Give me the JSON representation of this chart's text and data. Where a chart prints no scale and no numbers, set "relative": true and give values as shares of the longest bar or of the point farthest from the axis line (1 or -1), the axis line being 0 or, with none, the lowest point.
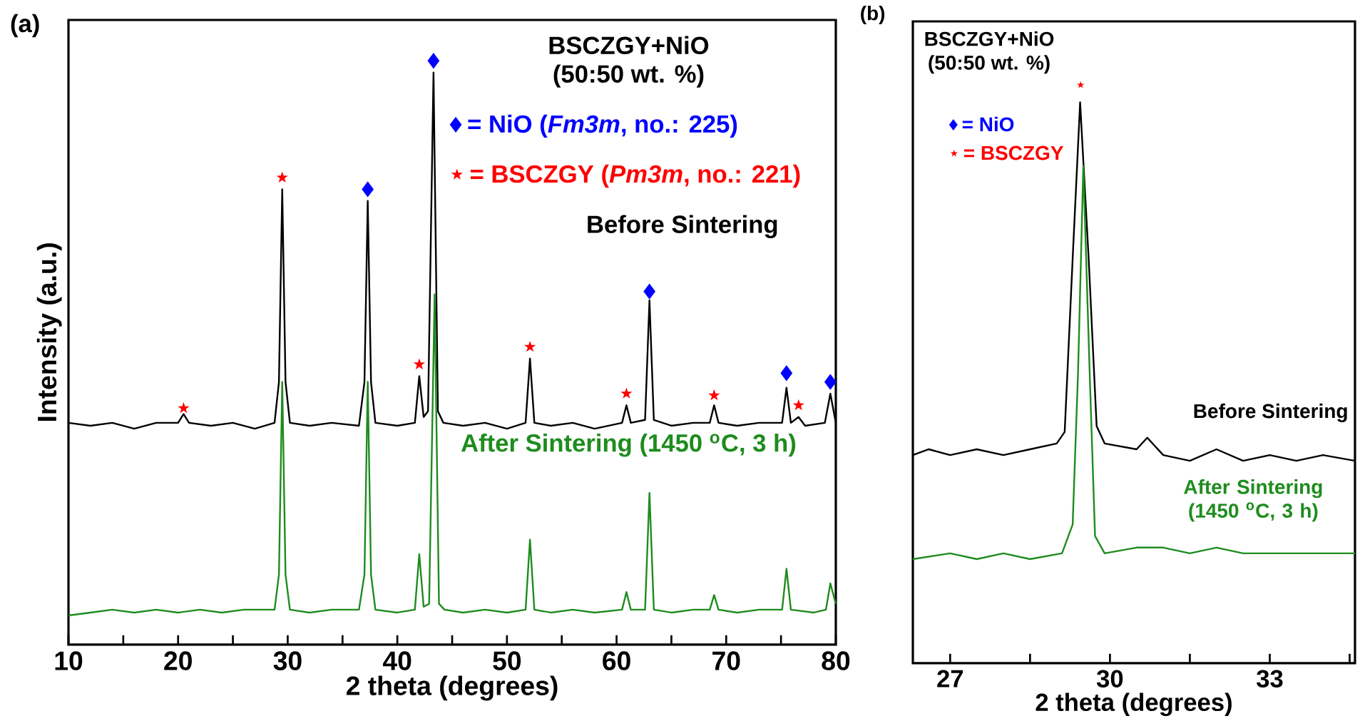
{
  "chart_data": [
    {
      "type": "line",
      "relative": true,
      "title": "BSCZGY+NiO",
      "subtitle": "(50:50 wt. %)",
      "xlabel": "2 theta (degrees)",
      "ylabel": "Intensity (a.u.)",
      "xlim": [
        10,
        80
      ],
      "xticks": [
        10,
        {
          "value": 15,
          "label": null
        },
        20,
        {
          "value": 25,
          "label": null
        },
        30,
        {
          "value": 35,
          "label": null
        },
        40,
        {
          "value": 45,
          "label": null
        },
        50,
        {
          "value": 55,
          "label": null
        },
        60,
        {
          "value": 65,
          "label": null
        },
        70,
        {
          "value": 75,
          "label": null
        },
        80
      ],
      "legend": "top right",
      "annotations": [
        "(a)"
      ],
      "series": [
        {
          "name": "Before Sintering",
          "color": "#000000",
          "x": [
            10,
            12,
            14,
            16,
            18,
            20,
            20.5,
            21,
            23,
            25,
            27,
            28.8,
            29.2,
            29.5,
            29.8,
            30.2,
            32,
            34,
            36.5,
            37.0,
            37.3,
            37.6,
            38,
            40,
            41.6,
            42.0,
            42.4,
            42.8,
            43.3,
            43.7,
            44.2,
            46,
            48,
            50,
            51.7,
            52.1,
            52.5,
            54,
            56,
            58,
            60.5,
            60.9,
            61.3,
            62.6,
            63.0,
            63.4,
            65,
            67,
            68.5,
            68.9,
            69.3,
            71,
            73,
            75.1,
            75.5,
            75.9,
            76.6,
            77.2,
            79,
            79.5,
            80
          ],
          "values": [
            0.38,
            0.375,
            0.38,
            0.37,
            0.38,
            0.38,
            0.395,
            0.38,
            0.375,
            0.38,
            0.37,
            0.38,
            0.45,
            0.78,
            0.45,
            0.38,
            0.375,
            0.38,
            0.375,
            0.45,
            0.76,
            0.45,
            0.38,
            0.375,
            0.38,
            0.46,
            0.39,
            0.4,
            0.98,
            0.4,
            0.38,
            0.375,
            0.38,
            0.37,
            0.38,
            0.49,
            0.38,
            0.375,
            0.38,
            0.37,
            0.38,
            0.41,
            0.38,
            0.385,
            0.59,
            0.385,
            0.375,
            0.38,
            0.38,
            0.41,
            0.38,
            0.375,
            0.38,
            0.38,
            0.44,
            0.38,
            0.39,
            0.375,
            0.38,
            0.43,
            0.38
          ]
        },
        {
          "name": "After Sintering (1450 $^{o}$C, 3 h)",
          "color": "#1e8c1e",
          "x": [
            10,
            12,
            14,
            16,
            18,
            20,
            22,
            24,
            26,
            28.8,
            29.2,
            29.5,
            29.8,
            30.2,
            32,
            34,
            36.5,
            37.0,
            37.3,
            37.6,
            38,
            40,
            41.6,
            42.0,
            42.4,
            42.9,
            43.4,
            43.8,
            44.3,
            46,
            48,
            50,
            51.7,
            52.1,
            52.5,
            54,
            56,
            58,
            60.5,
            60.9,
            61.3,
            62.6,
            63.0,
            63.4,
            65,
            67,
            68.5,
            68.9,
            69.3,
            71,
            73,
            75.1,
            75.5,
            75.9,
            78,
            79.1,
            79.5,
            80
          ],
          "values": [
            0.05,
            0.055,
            0.06,
            0.055,
            0.06,
            0.055,
            0.06,
            0.055,
            0.06,
            0.06,
            0.12,
            0.45,
            0.12,
            0.06,
            0.055,
            0.06,
            0.06,
            0.12,
            0.45,
            0.12,
            0.06,
            0.055,
            0.06,
            0.155,
            0.065,
            0.07,
            0.6,
            0.07,
            0.06,
            0.055,
            0.06,
            0.055,
            0.06,
            0.18,
            0.06,
            0.055,
            0.06,
            0.055,
            0.06,
            0.09,
            0.06,
            0.06,
            0.26,
            0.06,
            0.055,
            0.06,
            0.06,
            0.085,
            0.06,
            0.055,
            0.06,
            0.06,
            0.13,
            0.06,
            0.055,
            0.06,
            0.105,
            0.07
          ]
        },
        {
          "type": "scatter",
          "marker": "diamond",
          "name": "= NiO (*Fm3m*, no.: 225)",
          "color": "#0000ff",
          "x": [
            37.3,
            43.3,
            63.0,
            75.5,
            79.5
          ],
          "values": [
            0.78,
            1.0,
            0.605,
            0.465,
            0.45
          ]
        },
        {
          "type": "scatter",
          "marker": "star",
          "name": "= BSCZGY (*Pm3m*, no.: 221)",
          "color": "#ff0000",
          "x": [
            20.5,
            29.5,
            42.0,
            52.1,
            60.9,
            68.9,
            76.6
          ],
          "values": [
            0.405,
            0.8,
            0.48,
            0.51,
            0.43,
            0.427,
            0.41
          ]
        }
      ]
    },
    {
      "type": "line",
      "relative": true,
      "title": "BSCZGY+NiO",
      "subtitle": "(50:50 wt. %)",
      "xlabel": "2 theta (degrees)",
      "xlim": [
        26.3,
        34.6
      ],
      "xticks": [
        27,
        {
          "value": 28.5,
          "label": null
        },
        30,
        {
          "value": 31.5,
          "label": null
        },
        33,
        {
          "value": 34.5,
          "label": null
        }
      ],
      "legend": "top left",
      "annotations": [
        "(b)"
      ],
      "series": [
        {
          "name": "Before Sintering",
          "color": "#000000",
          "x": [
            26.3,
            26.6,
            27,
            27.5,
            28,
            28.5,
            29.0,
            29.15,
            29.3,
            29.44,
            29.6,
            29.75,
            29.9,
            30.5,
            30.7,
            31,
            31.5,
            32,
            32.5,
            33,
            33.5,
            34,
            34.6
          ],
          "values": [
            0.36,
            0.37,
            0.36,
            0.37,
            0.36,
            0.37,
            0.38,
            0.4,
            0.7,
            0.97,
            0.7,
            0.41,
            0.38,
            0.37,
            0.39,
            0.36,
            0.35,
            0.37,
            0.35,
            0.36,
            0.35,
            0.36,
            0.35
          ]
        },
        {
          "name": "After Sintering (1450 $^{o}$C, 3 h)",
          "color": "#1e8c1e",
          "x": [
            26.3,
            27,
            27.5,
            28,
            28.5,
            29.1,
            29.3,
            29.4,
            29.5,
            29.62,
            29.72,
            29.9,
            30.5,
            31,
            31.5,
            32,
            32.5,
            33,
            34,
            34.6
          ],
          "values": [
            0.18,
            0.19,
            0.18,
            0.19,
            0.18,
            0.19,
            0.24,
            0.5,
            0.86,
            0.5,
            0.22,
            0.19,
            0.2,
            0.2,
            0.19,
            0.2,
            0.19,
            0.19,
            0.19,
            0.19
          ]
        },
        {
          "type": "scatter",
          "marker": "diamond",
          "name": "= NiO",
          "color": "#0000ff"
        },
        {
          "type": "scatter",
          "marker": "star",
          "name": "= BSCZGY",
          "color": "#ff0000",
          "x": [
            29.45
          ],
          "values": [
            1.0
          ]
        }
      ]
    }
  ]
}
